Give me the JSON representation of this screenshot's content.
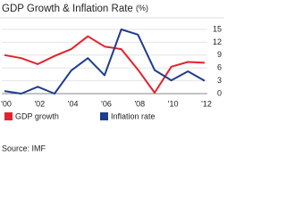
{
  "chart_data": {
    "type": "line",
    "title": "GDP Growth & Inflation Rate",
    "unit": "(%)",
    "categories": [
      "'00",
      null,
      "'02",
      null,
      "'04",
      null,
      "'06",
      null,
      "'08",
      null,
      "'10",
      null,
      "'12"
    ],
    "series": [
      {
        "name": "GDP growth",
        "color": "#e3222b",
        "values": [
          9.0,
          8.3,
          6.9,
          8.8,
          10.4,
          13.4,
          11.0,
          10.4,
          5.6,
          0.2,
          6.3,
          7.4,
          7.2
        ]
      },
      {
        "name": "Inflation rate",
        "color": "#1f3d8c",
        "values": [
          0.6,
          0.0,
          1.6,
          0.0,
          5.4,
          8.3,
          4.3,
          15.0,
          13.8,
          5.5,
          3.1,
          5.2,
          3.0
        ]
      }
    ],
    "ylim": [
      0,
      15
    ],
    "yticks": [
      0,
      3,
      6,
      9,
      12,
      15
    ],
    "grid": true,
    "source": "Source: IMF"
  }
}
